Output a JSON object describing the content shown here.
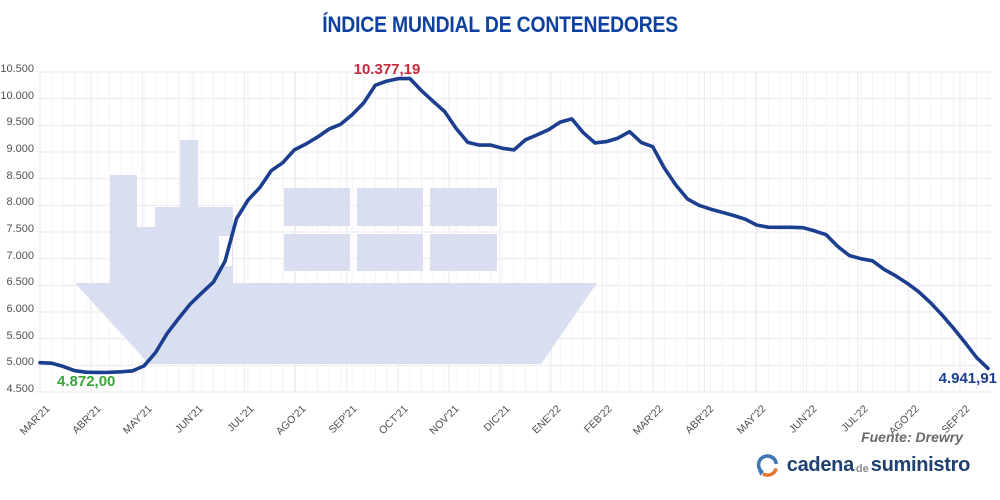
{
  "title": "ÍNDICE MUNDIAL DE CONTENEDORES",
  "annotations": {
    "peak": "10.377,19",
    "min": "4.872,00",
    "last": "4.941,91"
  },
  "source": "Fuente: Drewry",
  "logo": {
    "word1": "cadena",
    "word2": "de",
    "word3": "suministro",
    "icon": "circular-arrows-icon"
  },
  "colors": {
    "line": "#1c3e8f",
    "title": "#0e419f",
    "peak_label": "#c22b3d",
    "min_label": "#3aa53a",
    "last_label": "#1c3e8f",
    "axis_text": "#4f4f4f",
    "grid_h": "#eaeaef",
    "grid_month": "#eaeaf1",
    "grid_week": "#f4f4f8",
    "watermark": "#d9def0",
    "source_text": "#6a6a6a",
    "logo_text": "#1e4070",
    "logo_icon_blue": "#3e77b5",
    "logo_icon_orange": "#e8762c"
  },
  "chart_data": {
    "type": "line",
    "title": "ÍNDICE MUNDIAL DE CONTENEDORES",
    "xlabel": "",
    "ylabel": "",
    "ylim": [
      4500,
      10500
    ],
    "grid": true,
    "legend": "none",
    "x_tick_labels": [
      "MAR'21",
      "ABR'21",
      "MAY'21",
      "JUN'21",
      "JUL'21",
      "AGO'21",
      "SEP'21",
      "OCT'21",
      "NOV'21",
      "DIC'21",
      "ENE'22",
      "FEB'22",
      "MAR'22",
      "ABR'22",
      "MAY'22",
      "JUN'22",
      "JUL'22",
      "AGO'22",
      "SEP'22"
    ],
    "y_tick_labels": [
      "10.500",
      "10.000",
      "9.500",
      "9.000",
      "8.500",
      "8.000",
      "7.500",
      "7.000",
      "6.500",
      "6.000",
      "5.500",
      "5.000",
      "4.500"
    ],
    "y_tick_values": [
      10500,
      10000,
      9500,
      9000,
      8500,
      8000,
      7500,
      7000,
      6500,
      6000,
      5500,
      5000,
      4500
    ],
    "series": [
      {
        "name": "Índice mundial de contenedores",
        "sampling": "weekly",
        "values": [
          5050,
          5040,
          4980,
          4900,
          4872,
          4868,
          4870,
          4878,
          4895,
          4990,
          5240,
          5600,
          5880,
          6150,
          6360,
          6560,
          6950,
          7750,
          8100,
          8330,
          8650,
          8800,
          9040,
          9150,
          9280,
          9430,
          9520,
          9700,
          9920,
          10250,
          10330,
          10377,
          10377,
          10150,
          9950,
          9760,
          9440,
          9180,
          9130,
          9130,
          9070,
          9040,
          9230,
          9320,
          9420,
          9560,
          9620,
          9360,
          9170,
          9195,
          9260,
          9380,
          9180,
          9100,
          8700,
          8380,
          8120,
          8000,
          7930,
          7870,
          7810,
          7740,
          7630,
          7590,
          7588,
          7588,
          7580,
          7520,
          7450,
          7230,
          7060,
          7000,
          6960,
          6800,
          6680,
          6540,
          6380,
          6180,
          5950,
          5700,
          5430,
          5150,
          4942
        ]
      }
    ],
    "annotations": [
      {
        "text": "10.377,19",
        "position": "peak",
        "color": "#c22b3d"
      },
      {
        "text": "4.872,00",
        "position": "min",
        "color": "#3aa53a"
      },
      {
        "text": "4.941,91",
        "position": "last",
        "color": "#1c3e8f"
      }
    ],
    "watermark": "container-ship"
  }
}
